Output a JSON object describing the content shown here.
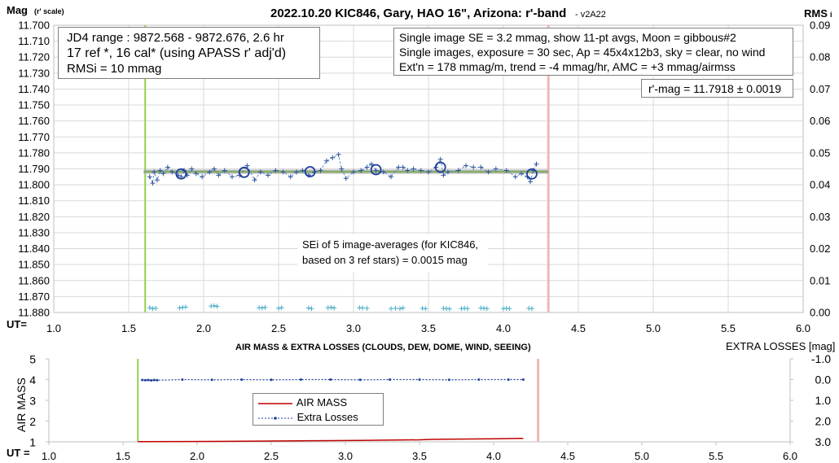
{
  "chart_data": [
    {
      "type": "scatter",
      "title": "2022.10.20 KIC846, Gary, HAO 16\", Arizona: r'-band",
      "version": "- v2A22",
      "ylabel": "Mag",
      "ylabel_sub": "(r' scale)",
      "ylabel_right": "RMS",
      "ylabel_right_sub": "i",
      "xlabel": "UT=",
      "xlim": [
        1.0,
        6.0
      ],
      "ylim": [
        11.88,
        11.7
      ],
      "ylim_right": [
        0.0,
        0.09
      ],
      "x_ticks": [
        "1.0",
        "1.5",
        "2.0",
        "2.5",
        "3.0",
        "3.5",
        "4.0",
        "4.5",
        "5.0",
        "5.5",
        "6.0"
      ],
      "y_ticks": [
        "11.700",
        "11.710",
        "11.720",
        "11.730",
        "11.740",
        "11.750",
        "11.760",
        "11.770",
        "11.780",
        "11.790",
        "11.800",
        "11.810",
        "11.820",
        "11.830",
        "11.840",
        "11.850",
        "11.860",
        "11.870",
        "11.880"
      ],
      "y_ticks_right": [
        "0.09",
        "0.08",
        "0.07",
        "0.06",
        "0.05",
        "0.04",
        "0.03",
        "0.02",
        "0.01",
        "0.00"
      ],
      "grid": true,
      "start_line_ut": 1.61,
      "end_line_ut": 4.3,
      "fit_line": {
        "x": [
          1.6,
          4.3
        ],
        "y": [
          11.7918,
          11.7918
        ]
      },
      "series": [
        {
          "x": [
            1.64,
            1.66,
            1.67,
            1.69,
            1.71,
            1.73,
            1.76,
            1.79,
            1.83,
            1.85,
            1.87,
            1.89,
            1.92,
            1.95,
            1.99,
            2.04,
            2.07,
            2.1,
            2.14,
            2.19,
            2.24,
            2.29,
            2.34,
            2.38,
            2.43,
            2.48,
            2.53,
            2.58,
            2.62,
            2.66,
            2.7,
            2.74,
            2.78,
            2.82,
            2.86,
            2.9,
            2.92,
            2.95,
            3.0,
            3.05,
            3.09,
            3.12,
            3.15,
            3.2,
            3.25,
            3.3,
            3.33,
            3.36,
            3.4,
            3.45,
            3.5,
            3.55,
            3.58,
            3.6,
            3.63,
            3.7,
            3.75,
            3.8,
            3.85,
            3.9,
            3.95,
            4.02,
            4.08,
            4.12,
            4.16,
            4.18,
            4.2,
            4.22
          ],
          "y": [
            11.795,
            11.799,
            11.792,
            11.797,
            11.791,
            11.793,
            11.789,
            11.792,
            11.794,
            11.795,
            11.791,
            11.794,
            11.79,
            11.793,
            11.795,
            11.792,
            11.79,
            11.794,
            11.791,
            11.795,
            11.794,
            11.788,
            11.797,
            11.792,
            11.794,
            11.791,
            11.792,
            11.795,
            11.792,
            11.791,
            11.794,
            11.792,
            11.791,
            11.785,
            11.783,
            11.781,
            11.79,
            11.796,
            11.792,
            11.791,
            11.789,
            11.787,
            11.791,
            11.792,
            11.795,
            11.789,
            11.789,
            11.791,
            11.79,
            11.791,
            11.792,
            11.789,
            11.784,
            11.794,
            11.792,
            11.791,
            11.788,
            11.789,
            11.789,
            11.792,
            11.79,
            11.791,
            11.795,
            11.793,
            11.795,
            11.798,
            11.791,
            11.787
          ]
        },
        {
          "x": [
            1.85,
            2.27,
            2.71,
            3.15,
            3.58,
            4.19
          ],
          "y": [
            11.7932,
            11.7922,
            11.7918,
            11.7905,
            11.789,
            11.7932
          ]
        },
        {
          "x": [
            1.64,
            1.66,
            1.68,
            1.84,
            1.86,
            1.88,
            2.05,
            2.07,
            2.09,
            2.37,
            2.39,
            2.41,
            2.5,
            2.52,
            2.7,
            2.72,
            2.83,
            2.85,
            2.87,
            3.04,
            3.06,
            3.09,
            3.25,
            3.28,
            3.31,
            3.33,
            3.46,
            3.48,
            3.6,
            3.62,
            3.64,
            3.72,
            3.74,
            3.76,
            3.85,
            3.87,
            3.89,
            4.0,
            4.02,
            4.04,
            4.17,
            4.19
          ],
          "y_right": [
            0.0015,
            0.0012,
            0.0013,
            0.0014,
            0.0016,
            0.0017,
            0.002,
            0.0021,
            0.0019,
            0.0015,
            0.0014,
            0.0016,
            0.0013,
            0.0015,
            0.0014,
            0.0012,
            0.0015,
            0.0016,
            0.0014,
            0.0015,
            0.0014,
            0.0013,
            0.0012,
            0.0013,
            0.0012,
            0.0014,
            0.0013,
            0.0012,
            0.0013,
            0.0012,
            0.0011,
            0.0012,
            0.0013,
            0.0012,
            0.0014,
            0.0013,
            0.0012,
            0.0012,
            0.0013,
            0.0012,
            0.0013,
            0.0012
          ]
        }
      ],
      "annotations": {
        "box_left": [
          "JD4 range : 9872.568 - 9872.676,  2.6  hr",
          "17 ref *, 16 cal* (using APASS r' adj'd)",
          "RMSi = 10 mmag"
        ],
        "box_right": [
          "Single image SE = 3.2 mmag, show  11-pt avgs, Moon = gibbous#2",
          "Single images, exposure = 30 sec, Ap = 45x4x12b3, sky = clear, no wind",
          "Ext'n = 178 mmag/m, trend = -4  mmag/hr, AMC = +3 mmag/airmss"
        ],
        "result": "r'-mag = 11.7918 ± 0.0019",
        "sei": [
          "SEi of 5 image-averages (for KIC846,",
          "based on 3 ref stars) = 0.0015 mag"
        ]
      }
    },
    {
      "type": "line",
      "title": "AIR MASS & EXTRA LOSSES (CLOUDS, DEW, DOME, WIND, SEEING)",
      "ylabel": "AIR MASS",
      "ylabel_right": "EXTRA LOSSES [mag]",
      "xlabel": "UT =",
      "xlim": [
        1.0,
        6.0
      ],
      "ylim": [
        1,
        5
      ],
      "ylim_right": [
        3.0,
        -1.0
      ],
      "x_ticks": [
        "1.0",
        "1.5",
        "2.0",
        "2.5",
        "3.0",
        "3.5",
        "4.0",
        "4.5",
        "5.0",
        "5.5",
        "6.0"
      ],
      "y_ticks": [
        "5",
        "4",
        "3",
        "2",
        "1"
      ],
      "y_ticks_right": [
        "-1.0",
        "0.0",
        "1.0",
        "2.0",
        "3.0"
      ],
      "start_line_ut": 1.6,
      "end_line_ut": 4.3,
      "series": [
        {
          "name": "AIR MASS",
          "color": "#c00000",
          "x": [
            1.6,
            1.9,
            2.2,
            2.5,
            2.8,
            3.1,
            3.5,
            3.6,
            4.0,
            4.2
          ],
          "y": [
            1.01,
            1.015,
            1.025,
            1.04,
            1.055,
            1.07,
            1.1,
            1.12,
            1.15,
            1.17
          ]
        },
        {
          "name": "Extra Losses",
          "color": "#1f3f9a",
          "x": [
            1.63,
            1.65,
            1.67,
            1.69,
            1.71,
            1.73,
            1.9,
            2.1,
            2.3,
            2.5,
            2.7,
            2.9,
            3.1,
            3.3,
            3.5,
            3.7,
            3.9,
            4.1,
            4.2
          ],
          "y_right": [
            0.02,
            0.03,
            0.02,
            0.04,
            0.02,
            0.03,
            0.0,
            0.01,
            0.0,
            0.01,
            0.0,
            0.0,
            0.01,
            0.0,
            0.0,
            0.01,
            0.0,
            0.0,
            0.0
          ]
        }
      ]
    }
  ]
}
